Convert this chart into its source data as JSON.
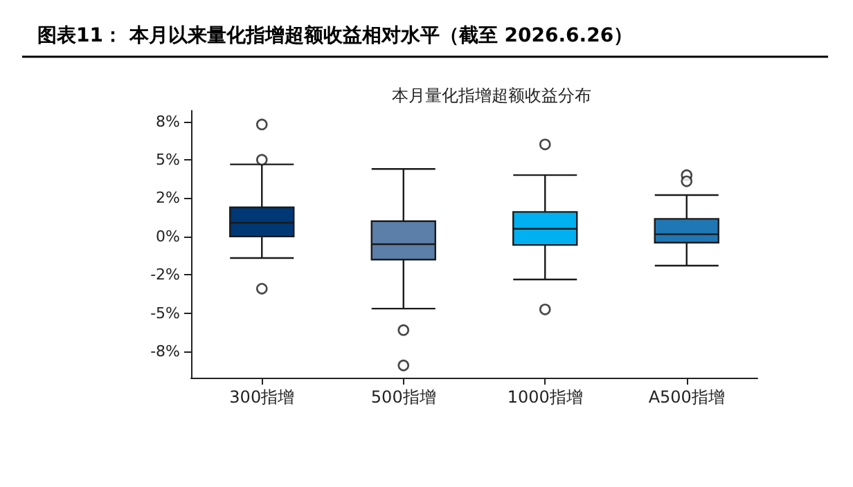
{
  "chart_data": {
    "type": "box",
    "title": "图表11： 本月以来量化指增超额收益相对水平（截至 2026.6.26）",
    "subtitle": "本月量化指增超额收益分布",
    "categories": [
      "300指增",
      "500指增",
      "1000指增",
      "A500指增"
    ],
    "colors": [
      "#003876",
      "#5b7fa8",
      "#00b0f0",
      "#1f77b4"
    ],
    "boxes": [
      {
        "low": -1.4,
        "q1": 0.0,
        "median": 0.9,
        "q3": 1.9,
        "high": 4.7,
        "outliers": [
          7.3,
          5.0,
          -3.4
        ]
      },
      {
        "low": -4.7,
        "q1": -1.5,
        "median": -0.5,
        "q3": 1.0,
        "high": 4.4,
        "outliers": [
          -6.1,
          -8.4
        ]
      },
      {
        "low": -2.8,
        "q1": -0.55,
        "median": 0.5,
        "q3": 1.6,
        "high": 4.0,
        "outliers": [
          6.0,
          -4.75
        ]
      },
      {
        "low": -1.9,
        "q1": -0.4,
        "median": 0.15,
        "q3": 1.15,
        "high": 2.7,
        "outliers": [
          4.0,
          3.6
        ]
      }
    ],
    "ylim": [
      -9.2,
      8.2
    ],
    "yticks": [
      {
        "value": -7.5,
        "label": "-8%"
      },
      {
        "value": -5,
        "label": "-5%"
      },
      {
        "value": -2.5,
        "label": "-2%"
      },
      {
        "value": 0,
        "label": "0%"
      },
      {
        "value": 2.5,
        "label": "2%"
      },
      {
        "value": 5,
        "label": "5%"
      },
      {
        "value": 7.5,
        "label": "8%"
      }
    ],
    "grid": false
  }
}
